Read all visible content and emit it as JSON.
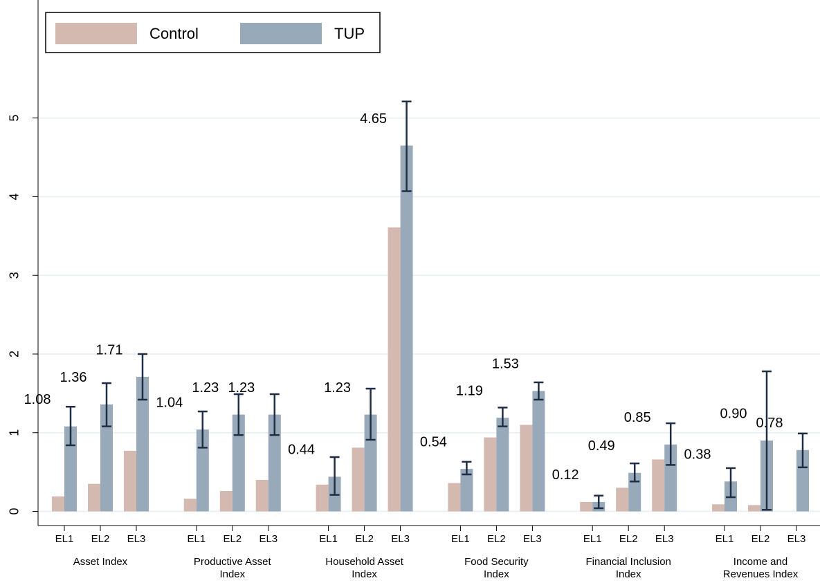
{
  "chart_data": {
    "type": "bar",
    "groups": [
      "Asset Index",
      "Productive Asset Index",
      "Household Asset Index",
      "Food Security Index",
      "Financial Inclusion Index",
      "Income and Revenues Index"
    ],
    "subcategories": [
      "EL1",
      "EL2",
      "EL3"
    ],
    "series": [
      {
        "name": "Control",
        "color": "#d4b9b1",
        "values": [
          0.19,
          0.35,
          0.77,
          0.16,
          0.26,
          0.4,
          0.34,
          0.81,
          3.61,
          0.36,
          0.94,
          1.1,
          0.12,
          0.3,
          0.66,
          0.09,
          0.08,
          0
        ]
      },
      {
        "name": "TUP",
        "color": "#98a9b9",
        "values": [
          1.08,
          1.36,
          1.71,
          1.04,
          1.23,
          1.23,
          0.44,
          1.23,
          4.65,
          0.54,
          1.19,
          1.53,
          0.12,
          0.49,
          0.85,
          0.38,
          0.9,
          0.78
        ],
        "value_labels": [
          "1.08",
          "1.36",
          "1.71",
          "1.04",
          "1.23",
          "1.23",
          "0.44",
          "1.23",
          "4.65",
          "0.54",
          "1.19",
          "1.53",
          "0.12",
          "0.49",
          "0.85",
          "0.38",
          "0.90",
          "0.78"
        ],
        "error_low": [
          0.84,
          1.08,
          1.42,
          0.81,
          0.97,
          0.97,
          0.21,
          0.91,
          4.07,
          0.47,
          1.08,
          1.42,
          0.04,
          0.38,
          0.59,
          0.18,
          0.02,
          0.56
        ],
        "error_high": [
          1.33,
          1.63,
          2.0,
          1.27,
          1.49,
          1.49,
          0.69,
          1.56,
          5.21,
          0.63,
          1.32,
          1.64,
          0.2,
          0.61,
          1.12,
          0.55,
          1.78,
          0.99
        ],
        "error_color": "#1f2d44"
      }
    ],
    "ylim": [
      -0.18,
      6.5
    ],
    "yticks": [
      0,
      1,
      2,
      3,
      4,
      5
    ],
    "grid": true,
    "legend": "top-left"
  }
}
